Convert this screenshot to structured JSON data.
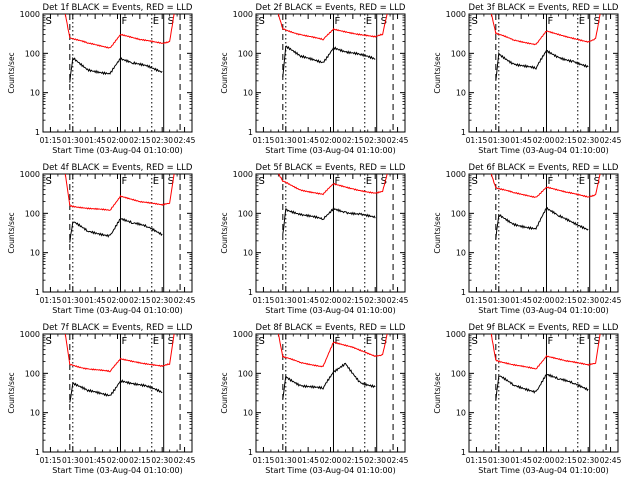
{
  "chart_data": [
    {
      "type": "line",
      "title": "Det 1f BLACK = Events, RED = LLD",
      "ylabel": "Counts/sec",
      "xlabel": "Start Time (03-Aug-04 01:10:00)",
      "ylim": [
        1,
        1000
      ],
      "yscale": "log",
      "xticks": [
        "01:15",
        "01:30",
        "01:45",
        "02:00",
        "02:15",
        "02:30",
        "02:45"
      ],
      "yticks": [
        "1",
        "10",
        "100",
        "1000"
      ],
      "grid": false,
      "annotations": [
        "S",
        "F",
        "E",
        "S"
      ],
      "event_lines": {
        "dashed": [
          "01:28",
          "02:42"
        ],
        "dotted": [
          "01:30",
          "02:23"
        ],
        "solid": [
          "02:02",
          "02:31"
        ]
      },
      "series": [
        {
          "name": "LLD",
          "color": "#ff0000",
          "x": [
            "01:25",
            "01:28",
            "01:40",
            "01:55",
            "02:02",
            "02:15",
            "02:30",
            "02:35",
            "02:38"
          ],
          "values": [
            1000,
            250,
            180,
            140,
            300,
            220,
            180,
            200,
            1000
          ]
        },
        {
          "name": "Events",
          "color": "#000000",
          "x": [
            "01:28",
            "01:30",
            "01:40",
            "01:55",
            "02:02",
            "02:10",
            "02:20",
            "02:30"
          ],
          "values": [
            18,
            75,
            40,
            30,
            70,
            55,
            50,
            35
          ]
        }
      ]
    },
    {
      "type": "line",
      "title": "Det 2f BLACK = Events, RED = LLD",
      "ylabel": "Counts/sec",
      "xlabel": "Start Time (03-Aug-04 01:10:00)",
      "ylim": [
        1,
        1000
      ],
      "yscale": "log",
      "xticks": [
        "01:15",
        "01:30",
        "01:45",
        "02:00",
        "02:15",
        "02:30",
        "02:45"
      ],
      "yticks": [
        "1",
        "10",
        "100",
        "1000"
      ],
      "grid": false,
      "annotations": [
        "S",
        "F",
        "E",
        "S"
      ],
      "event_lines": {
        "dashed": [
          "01:28",
          "02:42"
        ],
        "dotted": [
          "01:30",
          "02:23"
        ],
        "solid": [
          "02:02",
          "02:31"
        ]
      },
      "series": [
        {
          "name": "LLD",
          "color": "#ff0000",
          "x": [
            "01:25",
            "01:28",
            "01:40",
            "01:55",
            "02:02",
            "02:15",
            "02:30",
            "02:35",
            "02:38"
          ],
          "values": [
            1000,
            420,
            300,
            220,
            420,
            330,
            260,
            300,
            1000
          ]
        },
        {
          "name": "Events",
          "color": "#000000",
          "x": [
            "01:28",
            "01:30",
            "01:40",
            "01:55",
            "02:02",
            "02:10",
            "02:20",
            "02:30"
          ],
          "values": [
            25,
            150,
            80,
            60,
            140,
            110,
            90,
            70
          ]
        }
      ]
    },
    {
      "type": "line",
      "title": "Det 3f BLACK = Events, RED = LLD",
      "ylabel": "Counts/sec",
      "xlabel": "Start Time (03-Aug-04 01:10:00)",
      "ylim": [
        1,
        1000
      ],
      "yscale": "log",
      "xticks": [
        "01:15",
        "01:30",
        "01:45",
        "02:00",
        "02:15",
        "02:30",
        "02:45"
      ],
      "yticks": [
        "1",
        "10",
        "100",
        "1000"
      ],
      "grid": false,
      "annotations": [
        "S",
        "F",
        "E",
        "S"
      ],
      "event_lines": {
        "dashed": [
          "01:28",
          "02:42"
        ],
        "dotted": [
          "01:30",
          "02:23"
        ],
        "solid": [
          "02:02",
          "02:31"
        ]
      },
      "series": [
        {
          "name": "LLD",
          "color": "#ff0000",
          "x": [
            "01:25",
            "01:28",
            "01:40",
            "01:55",
            "02:02",
            "02:15",
            "02:30",
            "02:35",
            "02:38"
          ],
          "values": [
            1000,
            320,
            220,
            170,
            360,
            260,
            200,
            240,
            1000
          ]
        },
        {
          "name": "Events",
          "color": "#000000",
          "x": [
            "01:28",
            "01:30",
            "01:40",
            "01:55",
            "02:02",
            "02:10",
            "02:20",
            "02:30"
          ],
          "values": [
            20,
            100,
            55,
            40,
            120,
            80,
            65,
            45
          ]
        }
      ]
    },
    {
      "type": "line",
      "title": "Det 4f BLACK = Events, RED = LLD",
      "ylabel": "Counts/sec",
      "xlabel": "Start Time (03-Aug-04 01:10:00)",
      "ylim": [
        1,
        1000
      ],
      "yscale": "log",
      "xticks": [
        "01:15",
        "01:30",
        "01:45",
        "02:00",
        "02:15",
        "02:30",
        "02:45"
      ],
      "yticks": [
        "1",
        "10",
        "100",
        "1000"
      ],
      "grid": false,
      "annotations": [
        "S",
        "F",
        "E",
        "S"
      ],
      "event_lines": {
        "dashed": [
          "01:28",
          "02:42"
        ],
        "dotted": [
          "01:30",
          "02:23"
        ],
        "solid": [
          "02:02",
          "02:31"
        ]
      },
      "series": [
        {
          "name": "LLD",
          "color": "#ff0000",
          "x": [
            "01:25",
            "01:28",
            "01:40",
            "01:55",
            "02:02",
            "02:15",
            "02:30",
            "02:35",
            "02:38"
          ],
          "values": [
            1000,
            160,
            130,
            120,
            280,
            200,
            160,
            180,
            1000
          ]
        },
        {
          "name": "Events",
          "color": "#000000",
          "x": [
            "01:28",
            "01:30",
            "01:40",
            "01:55",
            "02:02",
            "02:10",
            "02:20",
            "02:30"
          ],
          "values": [
            18,
            60,
            35,
            28,
            70,
            55,
            45,
            30
          ]
        }
      ]
    },
    {
      "type": "line",
      "title": "Det 5f BLACK = Events, RED = LLD",
      "ylabel": "Counts/sec",
      "xlabel": "Start Time (03-Aug-04 01:10:00)",
      "ylim": [
        1,
        1000
      ],
      "yscale": "log",
      "xticks": [
        "01:15",
        "01:30",
        "01:45",
        "02:00",
        "02:15",
        "02:30",
        "02:45"
      ],
      "yticks": [
        "1",
        "10",
        "100",
        "1000"
      ],
      "grid": false,
      "annotations": [
        "S",
        "F",
        "E",
        "S"
      ],
      "event_lines": {
        "dashed": [
          "01:28",
          "02:42"
        ],
        "dotted": [
          "01:30",
          "02:23"
        ],
        "solid": [
          "02:02",
          "02:31"
        ]
      },
      "series": [
        {
          "name": "LLD",
          "color": "#ff0000",
          "x": [
            "01:25",
            "01:28",
            "01:40",
            "01:55",
            "02:02",
            "02:15",
            "02:30",
            "02:35",
            "02:38"
          ],
          "values": [
            1000,
            650,
            400,
            300,
            560,
            420,
            330,
            360,
            1000
          ]
        },
        {
          "name": "Events",
          "color": "#000000",
          "x": [
            "01:28",
            "01:30",
            "01:40",
            "01:55",
            "02:02",
            "02:10",
            "02:20",
            "02:30"
          ],
          "values": [
            30,
            130,
            90,
            70,
            140,
            110,
            95,
            75
          ]
        }
      ]
    },
    {
      "type": "line",
      "title": "Det 6f BLACK = Events, RED = LLD",
      "ylabel": "Counts/sec",
      "xlabel": "Start Time (03-Aug-04 01:10:00)",
      "ylim": [
        1,
        1000
      ],
      "yscale": "log",
      "xticks": [
        "01:15",
        "01:30",
        "01:45",
        "02:00",
        "02:15",
        "02:30",
        "02:45"
      ],
      "yticks": [
        "1",
        "10",
        "100",
        "1000"
      ],
      "grid": false,
      "annotations": [
        "S",
        "F",
        "E",
        "S"
      ],
      "event_lines": {
        "dashed": [
          "01:28",
          "02:42"
        ],
        "dotted": [
          "01:30",
          "02:23"
        ],
        "solid": [
          "02:02",
          "02:31"
        ]
      },
      "series": [
        {
          "name": "LLD",
          "color": "#ff0000",
          "x": [
            "01:25",
            "01:28",
            "01:40",
            "01:55",
            "02:02",
            "02:15",
            "02:30",
            "02:35",
            "02:38"
          ],
          "values": [
            1000,
            450,
            330,
            260,
            460,
            340,
            260,
            300,
            1000
          ]
        },
        {
          "name": "Events",
          "color": "#000000",
          "x": [
            "01:28",
            "01:30",
            "01:40",
            "01:55",
            "02:02",
            "02:10",
            "02:20",
            "02:30"
          ],
          "values": [
            22,
            90,
            55,
            40,
            130,
            85,
            60,
            40
          ]
        }
      ]
    },
    {
      "type": "line",
      "title": "Det 7f BLACK = Events, RED = LLD",
      "ylabel": "Counts/sec",
      "xlabel": "Start Time (03-Aug-04 01:10:00)",
      "ylim": [
        1,
        1000
      ],
      "yscale": "log",
      "xticks": [
        "01:15",
        "01:30",
        "01:45",
        "02:00",
        "02:15",
        "02:30",
        "02:45"
      ],
      "yticks": [
        "1",
        "10",
        "100",
        "1000"
      ],
      "grid": false,
      "annotations": [
        "S",
        "F",
        "E",
        "S"
      ],
      "event_lines": {
        "dashed": [
          "01:28",
          "02:42"
        ],
        "dotted": [
          "01:30",
          "02:23"
        ],
        "solid": [
          "02:02",
          "02:31"
        ]
      },
      "series": [
        {
          "name": "LLD",
          "color": "#ff0000",
          "x": [
            "01:25",
            "01:28",
            "01:40",
            "01:55",
            "02:02",
            "02:15",
            "02:30",
            "02:35",
            "02:38"
          ],
          "values": [
            1000,
            170,
            130,
            110,
            240,
            190,
            150,
            170,
            1000
          ]
        },
        {
          "name": "Events",
          "color": "#000000",
          "x": [
            "01:28",
            "01:30",
            "01:40",
            "01:55",
            "02:02",
            "02:10",
            "02:20",
            "02:30"
          ],
          "values": [
            18,
            55,
            35,
            28,
            65,
            55,
            45,
            32
          ]
        }
      ]
    },
    {
      "type": "line",
      "title": "Det 8f BLACK = Events, RED = LLD",
      "ylabel": "Counts/sec",
      "xlabel": "Start Time (03-Aug-04 01:10:00)",
      "ylim": [
        1,
        1000
      ],
      "yscale": "log",
      "xticks": [
        "01:15",
        "01:30",
        "01:45",
        "02:00",
        "02:15",
        "02:30",
        "02:45"
      ],
      "yticks": [
        "1",
        "10",
        "100",
        "1000"
      ],
      "grid": false,
      "annotations": [
        "S",
        "F",
        "E",
        "S"
      ],
      "event_lines": {
        "dashed": [
          "01:28",
          "02:42"
        ],
        "dotted": [
          "01:30",
          "02:23"
        ],
        "solid": [
          "02:02",
          "02:31"
        ]
      },
      "series": [
        {
          "name": "LLD",
          "color": "#ff0000",
          "x": [
            "01:25",
            "01:28",
            "01:40",
            "01:55",
            "02:02",
            "02:15",
            "02:30",
            "02:35",
            "02:38"
          ],
          "values": [
            1000,
            260,
            190,
            150,
            600,
            450,
            280,
            300,
            1000
          ]
        },
        {
          "name": "Events",
          "color": "#000000",
          "x": [
            "01:28",
            "01:30",
            "01:40",
            "01:55",
            "02:02",
            "02:10",
            "02:20",
            "02:30"
          ],
          "values": [
            22,
            85,
            50,
            40,
            110,
            180,
            60,
            45
          ]
        }
      ]
    },
    {
      "type": "line",
      "title": "Det 9f BLACK = Events, RED = LLD",
      "ylabel": "Counts/sec",
      "xlabel": "Start Time (03-Aug-04 01:10:00)",
      "ylim": [
        1,
        1000
      ],
      "yscale": "log",
      "xticks": [
        "01:15",
        "01:30",
        "01:45",
        "02:00",
        "02:15",
        "02:30",
        "02:45"
      ],
      "yticks": [
        "1",
        "10",
        "100",
        "1000"
      ],
      "grid": false,
      "annotations": [
        "S",
        "F",
        "E",
        "S"
      ],
      "event_lines": {
        "dashed": [
          "01:28",
          "02:42"
        ],
        "dotted": [
          "01:30",
          "02:23"
        ],
        "solid": [
          "02:02",
          "02:31"
        ]
      },
      "series": [
        {
          "name": "LLD",
          "color": "#ff0000",
          "x": [
            "01:25",
            "01:28",
            "01:40",
            "01:55",
            "02:02",
            "02:15",
            "02:30",
            "02:35",
            "02:38"
          ],
          "values": [
            1000,
            220,
            160,
            130,
            280,
            210,
            160,
            180,
            1000
          ]
        },
        {
          "name": "Events",
          "color": "#000000",
          "x": [
            "01:28",
            "01:30",
            "01:40",
            "01:55",
            "02:02",
            "02:10",
            "02:20",
            "02:30"
          ],
          "values": [
            20,
            85,
            50,
            35,
            90,
            70,
            55,
            40
          ]
        }
      ]
    }
  ]
}
